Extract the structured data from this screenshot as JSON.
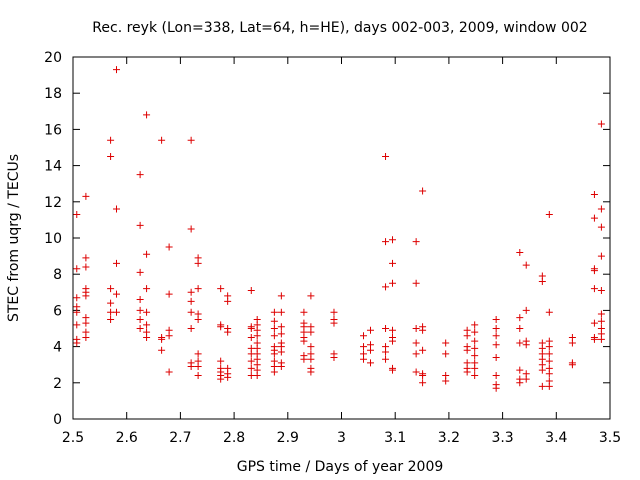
{
  "chart_data": {
    "type": "scatter",
    "title": "Rec. reyk (Lon=338, Lat=64, h=HE), days 002-003, 2009, window 002",
    "xlabel": "GPS time / Days of year 2009",
    "ylabel": "STEC from uqrg / TECUs",
    "xlim": [
      2.5,
      3.5
    ],
    "ylim": [
      0,
      20
    ],
    "x_ticks": [
      2.5,
      2.6,
      2.7,
      2.8,
      2.9,
      3.0,
      3.1,
      3.2,
      3.3,
      3.4,
      3.5
    ],
    "x_tick_labels": [
      "2.5",
      "2.6",
      "2.7",
      "2.8",
      "2.9",
      "3",
      "3.1",
      "3.2",
      "3.3",
      "3.4",
      "3.5"
    ],
    "y_ticks": [
      0,
      2,
      4,
      6,
      8,
      10,
      12,
      14,
      16,
      18,
      20
    ],
    "y_tick_labels": [
      "0",
      "2",
      "4",
      "6",
      "8",
      "10",
      "12",
      "14",
      "16",
      "18",
      "20"
    ],
    "marker": "+",
    "marker_color": "#dd0000",
    "series": [
      {
        "name": "STEC",
        "points": [
          [
            2.507,
            11.3
          ],
          [
            2.507,
            8.3
          ],
          [
            2.507,
            6.7
          ],
          [
            2.507,
            6.2
          ],
          [
            2.507,
            5.9
          ],
          [
            2.507,
            5.2
          ],
          [
            2.507,
            4.4
          ],
          [
            2.507,
            4.2
          ],
          [
            2.524,
            12.3
          ],
          [
            2.524,
            8.9
          ],
          [
            2.524,
            8.4
          ],
          [
            2.524,
            7.2
          ],
          [
            2.524,
            7.0
          ],
          [
            2.524,
            6.8
          ],
          [
            2.524,
            5.6
          ],
          [
            2.524,
            5.3
          ],
          [
            2.524,
            4.8
          ],
          [
            2.524,
            4.5
          ],
          [
            2.57,
            15.4
          ],
          [
            2.57,
            14.5
          ],
          [
            2.57,
            7.2
          ],
          [
            2.57,
            6.4
          ],
          [
            2.57,
            5.9
          ],
          [
            2.57,
            5.5
          ],
          [
            2.581,
            19.3
          ],
          [
            2.581,
            11.6
          ],
          [
            2.581,
            8.6
          ],
          [
            2.581,
            6.9
          ],
          [
            2.581,
            5.9
          ],
          [
            2.625,
            13.5
          ],
          [
            2.625,
            10.7
          ],
          [
            2.625,
            8.1
          ],
          [
            2.625,
            6.6
          ],
          [
            2.625,
            6.0
          ],
          [
            2.625,
            5.5
          ],
          [
            2.625,
            5.0
          ],
          [
            2.637,
            16.8
          ],
          [
            2.637,
            9.1
          ],
          [
            2.637,
            7.2
          ],
          [
            2.637,
            5.9
          ],
          [
            2.637,
            5.2
          ],
          [
            2.637,
            4.8
          ],
          [
            2.637,
            4.5
          ],
          [
            2.665,
            15.4
          ],
          [
            2.665,
            4.5
          ],
          [
            2.665,
            4.4
          ],
          [
            2.665,
            3.8
          ],
          [
            2.679,
            9.5
          ],
          [
            2.679,
            6.9
          ],
          [
            2.679,
            4.9
          ],
          [
            2.679,
            4.6
          ],
          [
            2.679,
            2.6
          ],
          [
            2.72,
            15.4
          ],
          [
            2.72,
            10.5
          ],
          [
            2.72,
            7.0
          ],
          [
            2.72,
            6.5
          ],
          [
            2.72,
            5.9
          ],
          [
            2.72,
            5.0
          ],
          [
            2.72,
            3.1
          ],
          [
            2.72,
            2.9
          ],
          [
            2.733,
            8.9
          ],
          [
            2.733,
            8.6
          ],
          [
            2.733,
            7.2
          ],
          [
            2.733,
            5.8
          ],
          [
            2.733,
            5.5
          ],
          [
            2.733,
            3.6
          ],
          [
            2.733,
            3.2
          ],
          [
            2.733,
            2.9
          ],
          [
            2.733,
            2.4
          ],
          [
            2.775,
            7.2
          ],
          [
            2.775,
            5.2
          ],
          [
            2.775,
            5.1
          ],
          [
            2.775,
            3.2
          ],
          [
            2.775,
            2.8
          ],
          [
            2.775,
            2.6
          ],
          [
            2.775,
            2.4
          ],
          [
            2.775,
            2.2
          ],
          [
            2.788,
            6.8
          ],
          [
            2.788,
            6.5
          ],
          [
            2.788,
            5.0
          ],
          [
            2.788,
            4.8
          ],
          [
            2.788,
            2.8
          ],
          [
            2.788,
            2.5
          ],
          [
            2.788,
            2.3
          ],
          [
            2.832,
            7.1
          ],
          [
            2.832,
            5.1
          ],
          [
            2.832,
            5.0
          ],
          [
            2.832,
            4.5
          ],
          [
            2.832,
            3.9
          ],
          [
            2.832,
            3.6
          ],
          [
            2.832,
            3.2
          ],
          [
            2.832,
            2.8
          ],
          [
            2.832,
            2.4
          ],
          [
            2.843,
            5.5
          ],
          [
            2.843,
            5.2
          ],
          [
            2.843,
            4.9
          ],
          [
            2.843,
            4.6
          ],
          [
            2.843,
            4.2
          ],
          [
            2.843,
            3.9
          ],
          [
            2.843,
            3.6
          ],
          [
            2.843,
            3.3
          ],
          [
            2.843,
            3.0
          ],
          [
            2.843,
            2.7
          ],
          [
            2.843,
            2.4
          ],
          [
            2.875,
            5.9
          ],
          [
            2.875,
            5.4
          ],
          [
            2.875,
            5.0
          ],
          [
            2.875,
            4.6
          ],
          [
            2.875,
            4.0
          ],
          [
            2.875,
            3.8
          ],
          [
            2.875,
            3.6
          ],
          [
            2.875,
            3.2
          ],
          [
            2.875,
            2.9
          ],
          [
            2.875,
            2.6
          ],
          [
            2.888,
            6.8
          ],
          [
            2.888,
            5.9
          ],
          [
            2.888,
            5.1
          ],
          [
            2.888,
            4.7
          ],
          [
            2.888,
            4.2
          ],
          [
            2.888,
            4.0
          ],
          [
            2.888,
            3.7
          ],
          [
            2.888,
            3.1
          ],
          [
            2.888,
            2.9
          ],
          [
            2.93,
            5.9
          ],
          [
            2.93,
            5.3
          ],
          [
            2.93,
            5.1
          ],
          [
            2.93,
            4.8
          ],
          [
            2.93,
            4.5
          ],
          [
            2.93,
            4.3
          ],
          [
            2.93,
            3.5
          ],
          [
            2.93,
            3.3
          ],
          [
            2.943,
            6.8
          ],
          [
            2.943,
            5.1
          ],
          [
            2.943,
            4.8
          ],
          [
            2.943,
            4.0
          ],
          [
            2.943,
            3.6
          ],
          [
            2.943,
            3.3
          ],
          [
            2.943,
            2.8
          ],
          [
            2.943,
            2.6
          ],
          [
            2.986,
            5.9
          ],
          [
            2.986,
            5.5
          ],
          [
            2.986,
            5.3
          ],
          [
            2.986,
            3.6
          ],
          [
            2.986,
            3.4
          ],
          [
            3.041,
            4.6
          ],
          [
            3.041,
            4.0
          ],
          [
            3.041,
            3.6
          ],
          [
            3.041,
            3.3
          ],
          [
            3.054,
            4.9
          ],
          [
            3.054,
            4.1
          ],
          [
            3.054,
            3.8
          ],
          [
            3.054,
            3.1
          ],
          [
            3.082,
            14.5
          ],
          [
            3.082,
            9.8
          ],
          [
            3.082,
            7.3
          ],
          [
            3.082,
            5.0
          ],
          [
            3.082,
            4.0
          ],
          [
            3.082,
            3.7
          ],
          [
            3.082,
            3.3
          ],
          [
            3.095,
            9.9
          ],
          [
            3.095,
            8.6
          ],
          [
            3.095,
            7.5
          ],
          [
            3.095,
            4.9
          ],
          [
            3.095,
            4.5
          ],
          [
            3.095,
            4.3
          ],
          [
            3.095,
            2.8
          ],
          [
            3.095,
            2.7
          ],
          [
            3.139,
            9.8
          ],
          [
            3.139,
            7.5
          ],
          [
            3.139,
            5.0
          ],
          [
            3.139,
            4.2
          ],
          [
            3.139,
            3.6
          ],
          [
            3.139,
            2.6
          ],
          [
            3.151,
            12.6
          ],
          [
            3.151,
            5.1
          ],
          [
            3.151,
            4.9
          ],
          [
            3.151,
            3.8
          ],
          [
            3.151,
            2.5
          ],
          [
            3.151,
            2.4
          ],
          [
            3.151,
            2.0
          ],
          [
            3.194,
            4.2
          ],
          [
            3.194,
            3.6
          ],
          [
            3.194,
            2.4
          ],
          [
            3.194,
            2.1
          ],
          [
            3.234,
            4.9
          ],
          [
            3.234,
            4.6
          ],
          [
            3.234,
            4.0
          ],
          [
            3.234,
            3.8
          ],
          [
            3.234,
            3.1
          ],
          [
            3.234,
            2.8
          ],
          [
            3.234,
            2.6
          ],
          [
            3.248,
            5.2
          ],
          [
            3.248,
            4.8
          ],
          [
            3.248,
            4.3
          ],
          [
            3.248,
            3.9
          ],
          [
            3.248,
            3.5
          ],
          [
            3.248,
            3.1
          ],
          [
            3.248,
            2.8
          ],
          [
            3.248,
            2.4
          ],
          [
            3.288,
            5.5
          ],
          [
            3.288,
            5.0
          ],
          [
            3.288,
            4.6
          ],
          [
            3.288,
            4.1
          ],
          [
            3.288,
            3.4
          ],
          [
            3.288,
            2.4
          ],
          [
            3.288,
            1.9
          ],
          [
            3.288,
            1.7
          ],
          [
            3.332,
            9.2
          ],
          [
            3.332,
            5.6
          ],
          [
            3.332,
            5.0
          ],
          [
            3.332,
            4.2
          ],
          [
            3.332,
            2.7
          ],
          [
            3.332,
            2.2
          ],
          [
            3.332,
            2.0
          ],
          [
            3.344,
            8.5
          ],
          [
            3.344,
            6.0
          ],
          [
            3.344,
            4.3
          ],
          [
            3.344,
            4.1
          ],
          [
            3.344,
            2.5
          ],
          [
            3.344,
            2.2
          ],
          [
            3.374,
            7.9
          ],
          [
            3.374,
            7.6
          ],
          [
            3.374,
            4.2
          ],
          [
            3.374,
            3.9
          ],
          [
            3.374,
            3.6
          ],
          [
            3.374,
            3.3
          ],
          [
            3.374,
            3.0
          ],
          [
            3.374,
            2.7
          ],
          [
            3.374,
            1.8
          ],
          [
            3.387,
            11.3
          ],
          [
            3.387,
            5.9
          ],
          [
            3.387,
            4.3
          ],
          [
            3.387,
            4.0
          ],
          [
            3.387,
            3.6
          ],
          [
            3.387,
            3.2
          ],
          [
            3.387,
            2.8
          ],
          [
            3.387,
            2.5
          ],
          [
            3.387,
            2.1
          ],
          [
            3.387,
            1.8
          ],
          [
            3.43,
            4.5
          ],
          [
            3.43,
            4.2
          ],
          [
            3.43,
            3.1
          ],
          [
            3.43,
            3.0
          ],
          [
            3.471,
            12.4
          ],
          [
            3.471,
            11.1
          ],
          [
            3.471,
            8.3
          ],
          [
            3.471,
            8.2
          ],
          [
            3.471,
            7.2
          ],
          [
            3.471,
            5.3
          ],
          [
            3.471,
            4.5
          ],
          [
            3.471,
            4.4
          ],
          [
            3.484,
            16.3
          ],
          [
            3.484,
            11.6
          ],
          [
            3.484,
            10.6
          ],
          [
            3.484,
            9.0
          ],
          [
            3.484,
            7.1
          ],
          [
            3.484,
            5.8
          ],
          [
            3.484,
            5.4
          ],
          [
            3.484,
            5.0
          ],
          [
            3.484,
            4.7
          ],
          [
            3.484,
            4.4
          ]
        ]
      }
    ]
  }
}
